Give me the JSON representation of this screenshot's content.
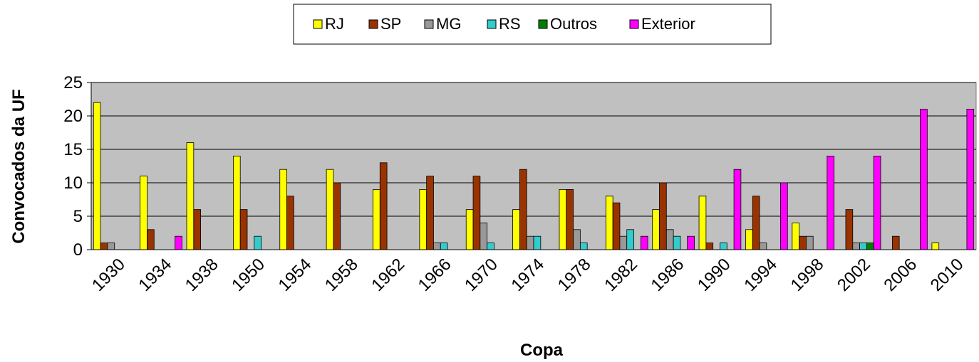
{
  "chart_data": {
    "type": "bar",
    "x_label": "Copa",
    "y_label": "Convocados da UF",
    "categories": [
      "1930",
      "1934",
      "1938",
      "1950",
      "1954",
      "1958",
      "1962",
      "1966",
      "1970",
      "1974",
      "1978",
      "1982",
      "1986",
      "1990",
      "1994",
      "1998",
      "2002",
      "2006",
      "2010"
    ],
    "series": [
      {
        "name": "RJ",
        "color": "#ffff00",
        "values": [
          22,
          11,
          16,
          14,
          12,
          12,
          9,
          9,
          6,
          6,
          9,
          8,
          6,
          8,
          3,
          4,
          0,
          0,
          1
        ]
      },
      {
        "name": "SP",
        "color": "#993300",
        "values": [
          1,
          3,
          6,
          6,
          8,
          10,
          13,
          11,
          11,
          12,
          9,
          7,
          10,
          1,
          8,
          2,
          6,
          2,
          0
        ]
      },
      {
        "name": "MG",
        "color": "#999999",
        "values": [
          1,
          0,
          0,
          0,
          0,
          0,
          0,
          1,
          4,
          2,
          3,
          2,
          3,
          0,
          1,
          2,
          1,
          0,
          0
        ]
      },
      {
        "name": "RS",
        "color": "#33cccc",
        "values": [
          0,
          0,
          0,
          2,
          0,
          0,
          0,
          1,
          1,
          2,
          1,
          3,
          2,
          1,
          0,
          0,
          1,
          0,
          0
        ]
      },
      {
        "name": "Outros",
        "color": "#008000",
        "values": [
          0,
          0,
          0,
          0,
          0,
          0,
          0,
          0,
          0,
          0,
          0,
          0,
          0,
          0,
          0,
          0,
          1,
          0,
          0
        ]
      },
      {
        "name": "Exterior",
        "color": "#ff00ff",
        "values": [
          0,
          2,
          0,
          0,
          0,
          0,
          0,
          0,
          0,
          0,
          0,
          2,
          2,
          12,
          10,
          14,
          14,
          21,
          21
        ]
      }
    ],
    "ylim": [
      0,
      25
    ],
    "yticks": [
      0,
      5,
      10,
      15,
      20,
      25
    ],
    "grid": true,
    "legend": "top"
  }
}
